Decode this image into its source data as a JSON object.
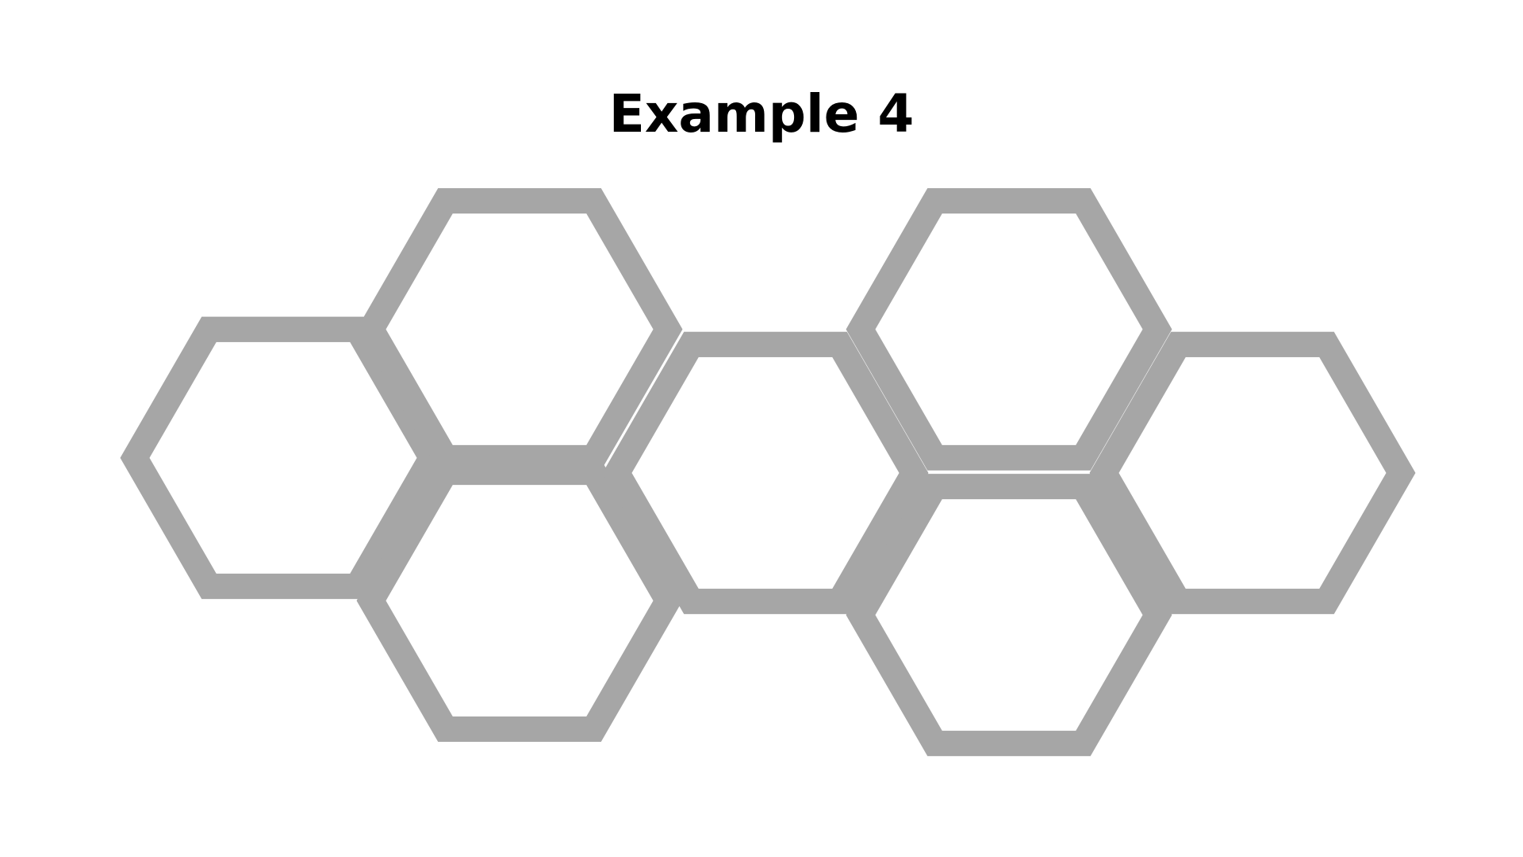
{
  "title": "Example 4",
  "colors": {
    "hexagon_stroke": "#a6a6a6",
    "hexagon_fill": "#ffffff",
    "background": "#ffffff",
    "title": "#000000"
  },
  "diagram": {
    "shape": "hexagon",
    "hexagon_count": 7
  }
}
